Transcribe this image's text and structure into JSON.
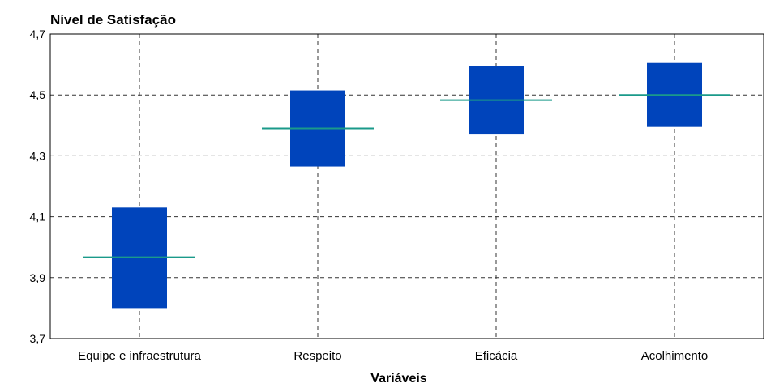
{
  "chart_data": {
    "type": "box",
    "title": "Nível de Satisfação",
    "xlabel": "Variáveis",
    "ylabel": "",
    "ylim": [
      3.7,
      4.7
    ],
    "yticks": [
      "3,7",
      "3,9",
      "4,1",
      "4,3",
      "4,5",
      "4,7"
    ],
    "ytick_values": [
      3.7,
      3.9,
      4.1,
      4.3,
      4.5,
      4.7
    ],
    "grid": true,
    "categories": [
      "Equipe e infraestrutura",
      "Respeito",
      "Eficácia",
      "Acolhimento"
    ],
    "boxes": [
      {
        "low": 3.8,
        "high": 4.13,
        "mid": 3.967
      },
      {
        "low": 4.265,
        "high": 4.515,
        "mid": 4.39
      },
      {
        "low": 4.37,
        "high": 4.595,
        "mid": 4.483
      },
      {
        "low": 4.395,
        "high": 4.605,
        "mid": 4.5
      }
    ],
    "colors": {
      "box": "#0044bb",
      "median": "#1a9a8a",
      "grid": "#333333",
      "axis": "#000000"
    }
  }
}
